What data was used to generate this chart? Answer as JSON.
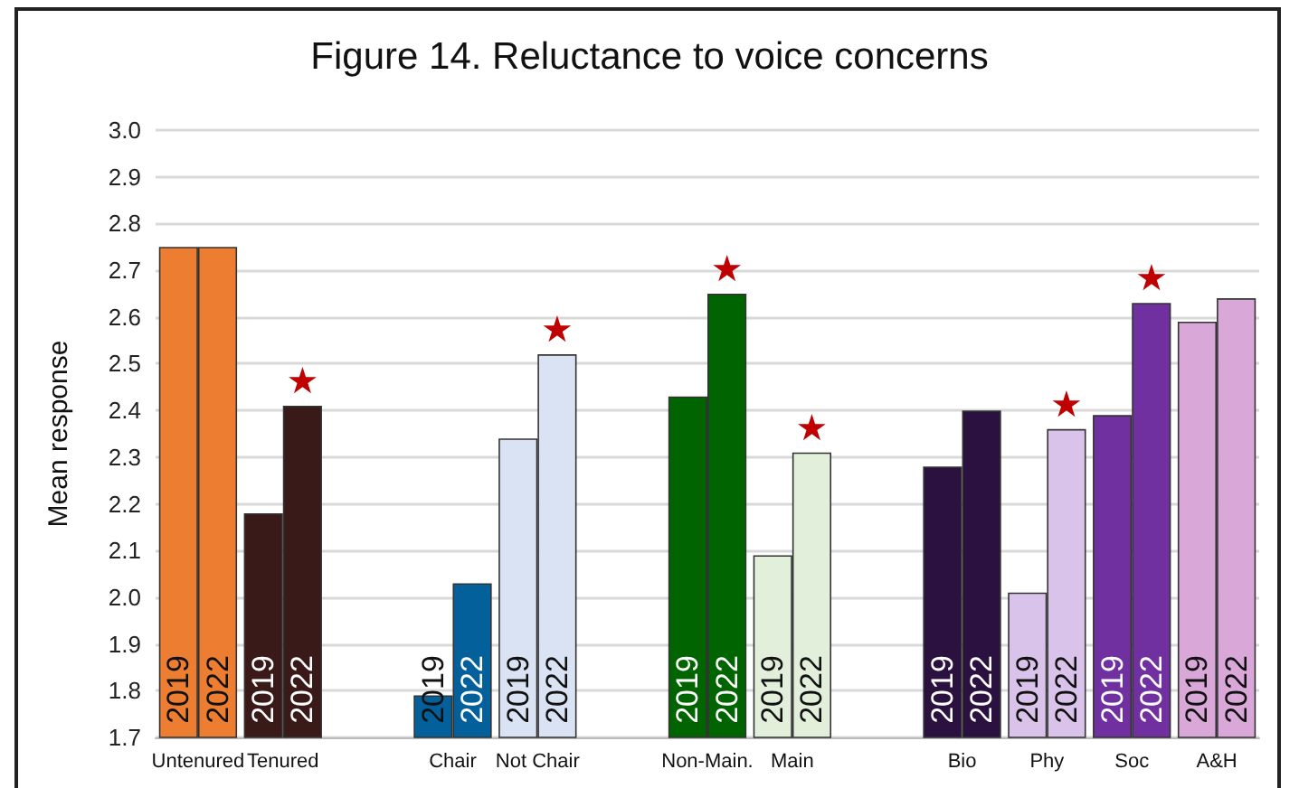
{
  "chart_data": {
    "type": "bar",
    "title": "Figure 14. Reluctance to voice concerns",
    "ylabel": "Mean response",
    "categories": [
      "Untenured",
      "Tenured",
      null,
      "Chair",
      "Not Chair",
      null,
      "Non-Main.",
      "Main",
      null,
      "Bio",
      "Phy",
      "Soc",
      "A&H"
    ],
    "series": [
      {
        "name": "2019",
        "values": [
          2.75,
          2.18,
          null,
          1.79,
          2.34,
          null,
          2.43,
          2.09,
          null,
          2.28,
          2.01,
          2.39,
          2.59
        ],
        "colors": [
          "#ed7d31",
          "#3a1a18",
          null,
          "#03609a",
          "#dae3f3",
          null,
          "#006400",
          "#e2efda",
          null,
          "#2b1140",
          "#d9c3ea",
          "#7030a0",
          "#d9a8d9"
        ]
      },
      {
        "name": "2022",
        "values": [
          2.75,
          2.41,
          null,
          2.03,
          2.52,
          null,
          2.65,
          2.31,
          null,
          2.4,
          2.36,
          2.63,
          2.64
        ],
        "colors": [
          "#ed7d31",
          "#3a1a18",
          null,
          "#03609a",
          "#dae3f3",
          null,
          "#006400",
          "#e2efda",
          null,
          "#2b1140",
          "#d9c3ea",
          "#7030a0",
          "#d9a8d9"
        ]
      }
    ],
    "ylim": [
      1.7,
      3.0
    ],
    "yticks": [
      1.7,
      1.8,
      1.9,
      {
        "value": 2.0,
        "label": "2.0"
      },
      2.1,
      2.2,
      2.3,
      2.4,
      2.5,
      2.6,
      2.7,
      2.8,
      2.9,
      {
        "value": 3.0,
        "label": "3.0"
      }
    ],
    "grid": "y",
    "legend": false,
    "annotations": [
      {
        "text": "★",
        "x": "Tenured",
        "y": 2.41
      },
      {
        "text": "★",
        "x": "Not Chair",
        "y": 2.52
      },
      {
        "text": "★",
        "x": "Non-Main.",
        "y": 2.65
      },
      {
        "text": "★",
        "x": "Main",
        "y": 2.31
      },
      {
        "text": "★",
        "x": "Phy",
        "y": 2.36
      },
      {
        "text": "★",
        "x": "Soc",
        "y": 2.63
      }
    ]
  }
}
